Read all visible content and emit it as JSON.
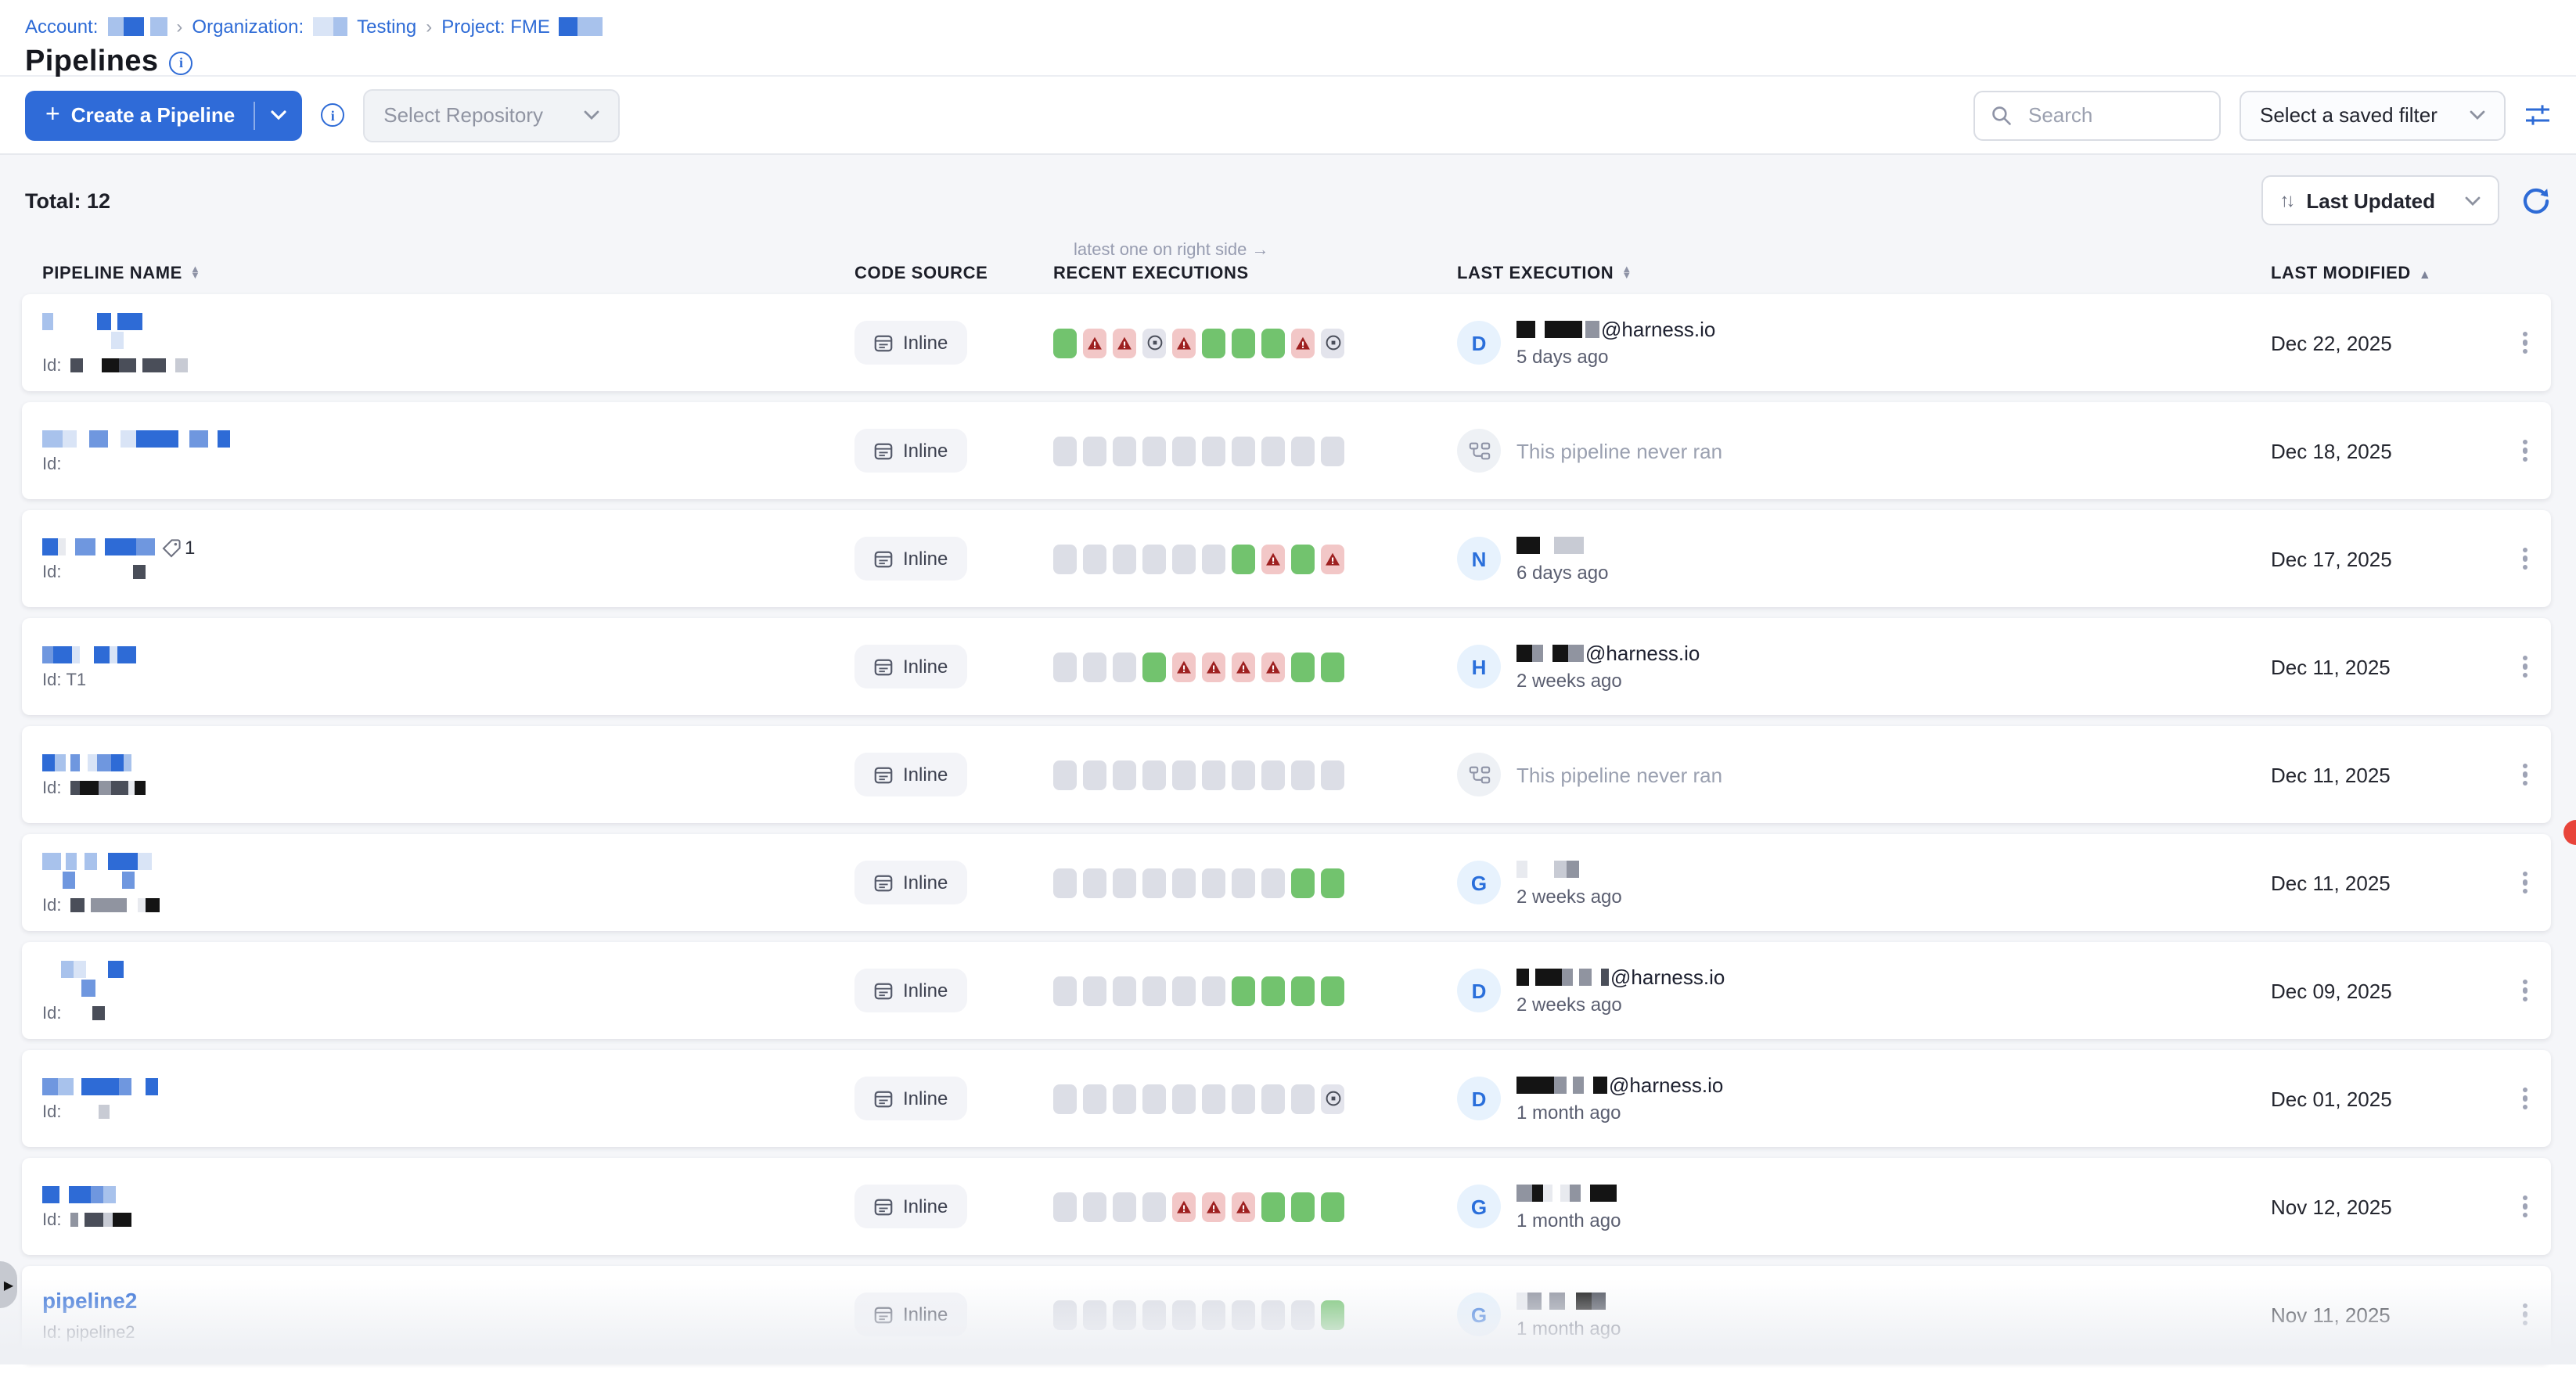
{
  "breadcrumb": {
    "account_label": "Account:",
    "org_label": "Organization:",
    "org_name": "Testing",
    "project_label": "Project: FME",
    "separator": "›",
    "redactions": {
      "account": [
        {
          "w": 10,
          "c": "b1"
        },
        {
          "w": 13,
          "c": "b3"
        },
        {
          "w": 4,
          "c": ""
        },
        {
          "w": 11,
          "c": "b1"
        }
      ],
      "org": [
        {
          "w": 13,
          "c": "b0"
        },
        {
          "w": 9,
          "c": "b1"
        }
      ],
      "project": [
        {
          "w": 12,
          "c": "b3"
        },
        {
          "w": 16,
          "c": "b1"
        }
      ]
    }
  },
  "header": {
    "title": "Pipelines"
  },
  "toolbar": {
    "create_button": "Create a Pipeline",
    "plus": "+",
    "select_repository": "Select Repository",
    "search_placeholder": "Search",
    "saved_filter": "Select a saved filter"
  },
  "list_header": {
    "total": "Total: 12",
    "sort_label": "Last Updated",
    "updown": "↑↓"
  },
  "table": {
    "columns": {
      "name": "PIPELINE NAME",
      "code_source": "CODE SOURCE",
      "recent": "RECENT EXECUTIONS",
      "recent_note": "latest one on right side →",
      "last_execution": "LAST EXECUTION",
      "last_modified": "LAST MODIFIED"
    },
    "sort_asc": "▲",
    "sort_up": "▲",
    "sort_down": "▼"
  },
  "strings": {
    "id_label": "Id:",
    "inline_badge": "Inline"
  },
  "colors": {
    "primary": "#2f6bd8",
    "success": "#72c36e",
    "failed_bg": "#f2c7c7",
    "failed_icon": "#9e2020",
    "empty": "#dcdee6",
    "aborted_bg": "#e3e4ec"
  },
  "redaction_palette": {
    "b0": "#d9e4f6",
    "b1": "#a8c2ec",
    "b2": "#6f97df",
    "b3": "#2e6bd6",
    "k": "#4a4e59",
    "k2": "#141414",
    "g": "#9094a0",
    "lg": "#c8cbd4",
    "w": "#e8eaef"
  },
  "rows": [
    {
      "name_text": "",
      "id_text": "",
      "name_lines": [
        [
          {
            "w": 7,
            "c": "b1"
          },
          {
            "w": 28,
            "c": ""
          },
          {
            "w": 9,
            "c": "b3"
          },
          {
            "w": 4,
            "c": ""
          },
          {
            "w": 16,
            "c": "b3"
          }
        ],
        [
          {
            "w": 44,
            "c": ""
          },
          {
            "w": 8,
            "c": "b0"
          }
        ]
      ],
      "id_blocks": [
        {
          "w": 8,
          "c": "k"
        },
        {
          "w": 12,
          "c": ""
        },
        {
          "w": 11,
          "c": "k2"
        },
        {
          "w": 11,
          "c": "k"
        },
        {
          "w": 4,
          "c": ""
        },
        {
          "w": 15,
          "c": "k"
        },
        {
          "w": 6,
          "c": ""
        },
        {
          "w": 8,
          "c": "lg"
        }
      ],
      "executions": "sffafsssfa",
      "exec": {
        "type": "user",
        "avatar": "D",
        "blocks": [
          {
            "w": 12,
            "c": "k2"
          },
          {
            "w": 6,
            "c": ""
          },
          {
            "w": 24,
            "c": "k2"
          },
          {
            "w": 2,
            "c": ""
          },
          {
            "w": 9,
            "c": "g"
          }
        ],
        "email": "@harness.io",
        "time": "5 days ago"
      },
      "date": "Dec 22, 2025"
    },
    {
      "name_text": "",
      "id_text": "",
      "name_lines": [
        [
          {
            "w": 13,
            "c": "b1"
          },
          {
            "w": 9,
            "c": "b0"
          },
          {
            "w": 8,
            "c": ""
          },
          {
            "w": 12,
            "c": "b2"
          },
          {
            "w": 8,
            "c": ""
          },
          {
            "w": 10,
            "c": "b0"
          },
          {
            "w": 27,
            "c": "b3"
          },
          {
            "w": 7,
            "c": ""
          },
          {
            "w": 12,
            "c": "b2"
          },
          {
            "w": 6,
            "c": ""
          },
          {
            "w": 8,
            "c": "b3"
          }
        ]
      ],
      "id_blocks": [],
      "executions": "eeeeeeeeee",
      "exec": {
        "type": "never",
        "text": "This pipeline never ran"
      },
      "date": "Dec 18, 2025"
    },
    {
      "name_text": "",
      "id_text": "",
      "tag_count": "1",
      "name_lines": [
        [
          {
            "w": 10,
            "c": "b3"
          },
          {
            "w": 5,
            "c": "w"
          },
          {
            "w": 6,
            "c": ""
          },
          {
            "w": 13,
            "c": "b2"
          },
          {
            "w": 6,
            "c": ""
          },
          {
            "w": 20,
            "c": "b3"
          },
          {
            "w": 12,
            "c": "b2"
          }
        ]
      ],
      "id_blocks": [
        {
          "w": 40,
          "c": ""
        },
        {
          "w": 8,
          "c": "k"
        }
      ],
      "executions": "eeeeeesfsf",
      "exec": {
        "type": "user",
        "avatar": "N",
        "blocks": [
          {
            "w": 15,
            "c": "k2"
          },
          {
            "w": 9,
            "c": ""
          },
          {
            "w": 19,
            "c": "lg"
          }
        ],
        "email": "",
        "time": "6 days ago"
      },
      "date": "Dec 17, 2025"
    },
    {
      "name_text": "",
      "id_text": "T1",
      "name_lines": [
        [
          {
            "w": 7,
            "c": "b2"
          },
          {
            "w": 12,
            "c": "b3"
          },
          {
            "w": 5,
            "c": "b0"
          },
          {
            "w": 9,
            "c": ""
          },
          {
            "w": 10,
            "c": "b3"
          },
          {
            "w": 5,
            "c": "b0"
          },
          {
            "w": 12,
            "c": "b3"
          }
        ]
      ],
      "id_blocks": [],
      "executions": "eeesffffss",
      "exec": {
        "type": "user",
        "avatar": "H",
        "blocks": [
          {
            "w": 10,
            "c": "k2"
          },
          {
            "w": 7,
            "c": "g"
          },
          {
            "w": 6,
            "c": ""
          },
          {
            "w": 10,
            "c": "k2"
          },
          {
            "w": 10,
            "c": "g"
          }
        ],
        "email": "@harness.io",
        "time": "2 weeks ago"
      },
      "date": "Dec 11, 2025"
    },
    {
      "name_text": "",
      "id_text": "",
      "name_lines": [
        [
          {
            "w": 8,
            "c": "b3"
          },
          {
            "w": 7,
            "c": "b1"
          },
          {
            "w": 3,
            "c": ""
          },
          {
            "w": 6,
            "c": "b2"
          },
          {
            "w": 5,
            "c": ""
          },
          {
            "w": 6,
            "c": "b0"
          },
          {
            "w": 9,
            "c": "b2"
          },
          {
            "w": 8,
            "c": "b3"
          },
          {
            "w": 5,
            "c": "b1"
          }
        ]
      ],
      "id_blocks": [
        {
          "w": 6,
          "c": "k"
        },
        {
          "w": 12,
          "c": "k2"
        },
        {
          "w": 8,
          "c": "g"
        },
        {
          "w": 11,
          "c": "k"
        },
        {
          "w": 4,
          "c": "w"
        },
        {
          "w": 7,
          "c": "k2"
        }
      ],
      "executions": "eeeeeeeeee",
      "exec": {
        "type": "never",
        "text": "This pipeline never ran"
      },
      "date": "Dec 11, 2025"
    },
    {
      "name_text": "",
      "id_text": "",
      "name_lines": [
        [
          {
            "w": 12,
            "c": "b1"
          },
          {
            "w": 3,
            "c": ""
          },
          {
            "w": 7,
            "c": "b1"
          },
          {
            "w": 5,
            "c": ""
          },
          {
            "w": 8,
            "c": "b1"
          },
          {
            "w": 7,
            "c": ""
          },
          {
            "w": 10,
            "c": "b3"
          },
          {
            "w": 9,
            "c": "b3"
          },
          {
            "w": 9,
            "c": "b0"
          }
        ],
        [
          {
            "w": 13,
            "c": ""
          },
          {
            "w": 8,
            "c": "b2"
          },
          {
            "w": 30,
            "c": ""
          },
          {
            "w": 8,
            "c": "b2"
          }
        ]
      ],
      "id_blocks": [
        {
          "w": 9,
          "c": "k"
        },
        {
          "w": 4,
          "c": ""
        },
        {
          "w": 23,
          "c": "g"
        },
        {
          "w": 7,
          "c": ""
        },
        {
          "w": 5,
          "c": "w"
        },
        {
          "w": 9,
          "c": "k2"
        }
      ],
      "executions": "eeeeeeeess",
      "exec": {
        "type": "user",
        "avatar": "G",
        "blocks": [
          {
            "w": 7,
            "c": "w"
          },
          {
            "w": 17,
            "c": ""
          },
          {
            "w": 8,
            "c": "lg"
          },
          {
            "w": 8,
            "c": "g"
          }
        ],
        "email": "",
        "time": "2 weeks ago"
      },
      "date": "Dec 11, 2025"
    },
    {
      "name_text": "",
      "id_text": "",
      "name_lines": [
        [
          {
            "w": 12,
            "c": ""
          },
          {
            "w": 8,
            "c": "b1"
          },
          {
            "w": 8,
            "c": "b0"
          },
          {
            "w": 14,
            "c": ""
          },
          {
            "w": 10,
            "c": "b3"
          }
        ],
        [
          {
            "w": 25,
            "c": ""
          },
          {
            "w": 9,
            "c": "b2"
          }
        ]
      ],
      "id_blocks": [
        {
          "w": 14,
          "c": ""
        },
        {
          "w": 8,
          "c": "k"
        }
      ],
      "executions": "eeeeeessss",
      "exec": {
        "type": "user",
        "avatar": "D",
        "blocks": [
          {
            "w": 8,
            "c": "k2"
          },
          {
            "w": 4,
            "c": ""
          },
          {
            "w": 17,
            "c": "k2"
          },
          {
            "w": 7,
            "c": "g"
          },
          {
            "w": 4,
            "c": ""
          },
          {
            "w": 8,
            "c": "g"
          },
          {
            "w": 6,
            "c": ""
          },
          {
            "w": 5,
            "c": "k"
          }
        ],
        "email": "@harness.io",
        "time": "2 weeks ago"
      },
      "date": "Dec 09, 2025"
    },
    {
      "name_text": "",
      "id_text": "",
      "name_lines": [
        [
          {
            "w": 10,
            "c": "b2"
          },
          {
            "w": 10,
            "c": "b1"
          },
          {
            "w": 5,
            "c": ""
          },
          {
            "w": 24,
            "c": "b3"
          },
          {
            "w": 8,
            "c": "b2"
          },
          {
            "w": 9,
            "c": ""
          },
          {
            "w": 8,
            "c": "b3"
          }
        ]
      ],
      "id_blocks": [
        {
          "w": 18,
          "c": ""
        },
        {
          "w": 7,
          "c": "lg"
        }
      ],
      "executions": "eeeeeeeeea",
      "exec": {
        "type": "user",
        "avatar": "D",
        "blocks": [
          {
            "w": 24,
            "c": "k2"
          },
          {
            "w": 8,
            "c": "g"
          },
          {
            "w": 4,
            "c": ""
          },
          {
            "w": 7,
            "c": "g"
          },
          {
            "w": 6,
            "c": ""
          },
          {
            "w": 9,
            "c": "k2"
          }
        ],
        "email": "@harness.io",
        "time": "1 month ago"
      },
      "date": "Dec 01, 2025"
    },
    {
      "name_text": "",
      "id_text": "",
      "name_lines": [
        [
          {
            "w": 11,
            "c": "b3"
          },
          {
            "w": 6,
            "c": ""
          },
          {
            "w": 14,
            "c": "b3"
          },
          {
            "w": 8,
            "c": "b2"
          },
          {
            "w": 8,
            "c": "b1"
          }
        ]
      ],
      "id_blocks": [
        {
          "w": 5,
          "c": "g"
        },
        {
          "w": 4,
          "c": ""
        },
        {
          "w": 12,
          "c": "k"
        },
        {
          "w": 6,
          "c": "lg"
        },
        {
          "w": 12,
          "c": "k2"
        }
      ],
      "executions": "eeeefffsss",
      "exec": {
        "type": "user",
        "avatar": "G",
        "blocks": [
          {
            "w": 10,
            "c": "g"
          },
          {
            "w": 7,
            "c": "k2"
          },
          {
            "w": 6,
            "c": "w"
          },
          {
            "w": 5,
            "c": ""
          },
          {
            "w": 6,
            "c": "w"
          },
          {
            "w": 7,
            "c": "g"
          },
          {
            "w": 6,
            "c": ""
          },
          {
            "w": 17,
            "c": "k2"
          }
        ],
        "email": "",
        "time": "1 month ago"
      },
      "date": "Nov 12, 2025"
    },
    {
      "name_text": "pipeline2",
      "id_text": "pipeline2",
      "name_lines": [],
      "id_blocks": [],
      "executions": "eeeeeeeees",
      "exec": {
        "type": "user",
        "avatar": "G",
        "blocks": [
          {
            "w": 7,
            "c": "w"
          },
          {
            "w": 9,
            "c": "g"
          },
          {
            "w": 5,
            "c": ""
          },
          {
            "w": 10,
            "c": "g"
          },
          {
            "w": 7,
            "c": ""
          },
          {
            "w": 10,
            "c": "k2"
          },
          {
            "w": 9,
            "c": "k"
          }
        ],
        "email": "",
        "time": "1 month ago"
      },
      "date": "Nov 11, 2025"
    }
  ]
}
